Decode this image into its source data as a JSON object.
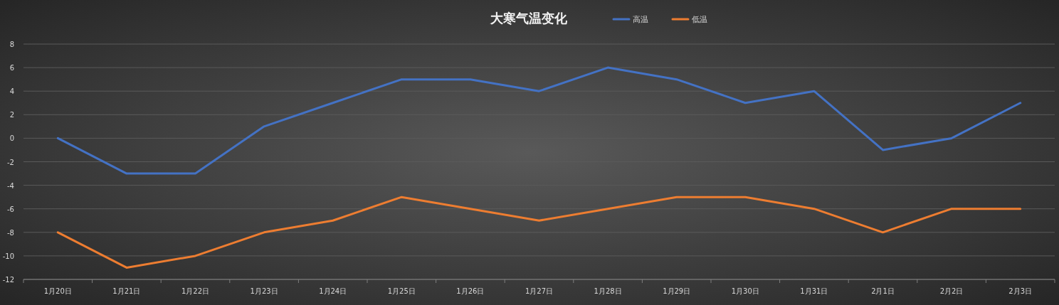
{
  "chart_data": {
    "type": "line",
    "title": "大寒气温变化",
    "categories": [
      "1月20日",
      "1月21日",
      "1月22日",
      "1月23日",
      "1月24日",
      "1月25日",
      "1月26日",
      "1月27日",
      "1月28日",
      "1月29日",
      "1月30日",
      "1月31日",
      "2月1日",
      "2月2日",
      "2月3日"
    ],
    "series": [
      {
        "name": "高温",
        "color": "#4472c4",
        "values": [
          0,
          -3,
          -3,
          1,
          3,
          5,
          5,
          4,
          6,
          5,
          3,
          4,
          -1,
          0,
          3
        ]
      },
      {
        "name": "低温",
        "color": "#ed7d31",
        "values": [
          -8,
          -11,
          -10,
          -8,
          -7,
          -5,
          -6,
          -7,
          -6,
          -5,
          -5,
          -6,
          -8,
          -6,
          -6
        ]
      }
    ],
    "ylim": [
      -12,
      8
    ],
    "yticks": [
      -12,
      -10,
      -8,
      -6,
      -4,
      -2,
      0,
      2,
      4,
      6,
      8
    ],
    "grid": "y",
    "legend": "top"
  }
}
